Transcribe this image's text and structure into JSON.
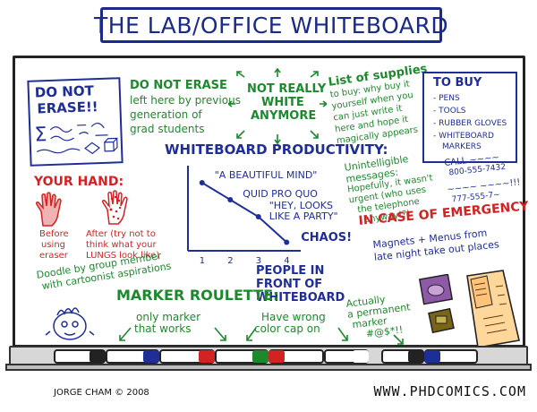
{
  "title": "THE LAB/OFFICE WHITEBOARD",
  "do_not_erase": {
    "line1": "DO NOT",
    "line2": "ERASE!!"
  },
  "top_center": {
    "do_not_erase_note": [
      "DO NOT ERASE",
      "left here by previous",
      "generation of",
      "grad students"
    ],
    "not_really_white": [
      "NOT REALLY",
      "WHITE",
      "ANYMORE"
    ],
    "list_of_supplies": [
      "List of supplies",
      "to buy: why buy it",
      "yourself when you",
      "can just write it",
      "here and hope it",
      "magically appears"
    ]
  },
  "to_buy": {
    "heading": "TO BUY",
    "items": [
      "- PENS",
      "- TOOLS",
      "- RUBBER GLOVES",
      "- WHITEBOARD",
      "MARKERS"
    ]
  },
  "your_hand": {
    "heading": "YOUR HAND:",
    "before": [
      "Before",
      "using",
      "eraser"
    ],
    "after": [
      "After (try not to",
      "think what your",
      "LUNGS look like)"
    ]
  },
  "chart_data": {
    "type": "line",
    "title": "WHITEBOARD PRODUCTIVITY:",
    "x": [
      1,
      2,
      3,
      4
    ],
    "x_ticks": [
      "1",
      "2",
      "3",
      "4"
    ],
    "points": [
      {
        "x": 1,
        "y": 4,
        "label": "\"A BEAUTIFUL MIND\""
      },
      {
        "x": 2,
        "y": 3,
        "label": "QUID PRO QUO"
      },
      {
        "x": 3,
        "y": 2,
        "label": "\"HEY, LOOKS LIKE A PARTY\""
      },
      {
        "x": 4,
        "y": 0.5,
        "label": "CHAOS!"
      }
    ],
    "xlabel": "PEOPLE IN FRONT OF WHITEBOARD",
    "ylabel": "",
    "xlim": [
      0.5,
      4.5
    ],
    "ylim": [
      0,
      5
    ]
  },
  "unintelligible": [
    "Unintelligible",
    "messages:",
    "Hopefully, it wasn't",
    "urgent (who uses",
    "the telephone",
    "anyway!?)"
  ],
  "call": [
    "CALL ~~~~",
    "800-555-7432",
    "~~~~ ~~~~!!!",
    "777-555-7~"
  ],
  "doodle": [
    "Doodle by group member",
    "with cartoonist aspirations"
  ],
  "marker_roulette": {
    "heading": "MARKER ROULETTE:",
    "only_marker": [
      "only marker",
      "that works"
    ],
    "wrong_cap": [
      "Have wrong",
      "color cap on"
    ],
    "permanent": [
      "Actually",
      "a permanent",
      "marker",
      "#@$*!!"
    ]
  },
  "emergency": {
    "heading": "IN CASE OF EMERGENCY",
    "note": [
      "Magnets + Menus from",
      "late night take out places"
    ]
  },
  "footer": {
    "credit": "JORGE CHAM © 2008",
    "url": "WWW.PHDCOMICS.COM"
  },
  "colors": {
    "blue": "#1e2e96",
    "green": "#1c8a2c",
    "red": "#d32222",
    "black": "#111111"
  }
}
